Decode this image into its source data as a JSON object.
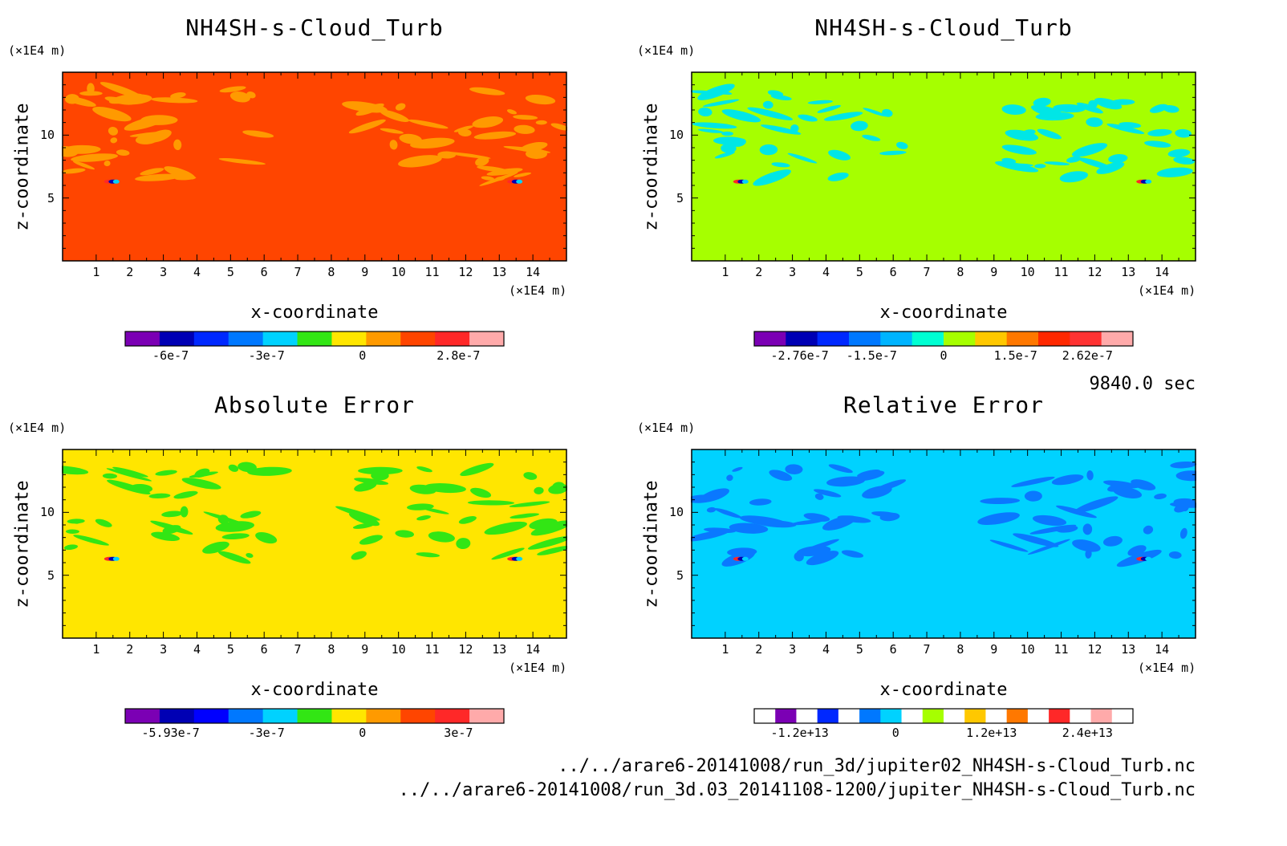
{
  "chart_data": [
    {
      "type": "heatmap",
      "title": "NH4SH-s-Cloud_Turb",
      "xlabel": "x-coordinate",
      "ylabel": "z-coordinate",
      "x_unit": "(×1E4 m)",
      "y_unit": "(×1E4 m)",
      "x_ticks": [
        "1",
        "2",
        "3",
        "4",
        "5",
        "6",
        "7",
        "8",
        "9",
        "10",
        "11",
        "12",
        "13",
        "14"
      ],
      "y_ticks": [
        "5",
        "10"
      ],
      "xlim": [
        0,
        15
      ],
      "ylim": [
        0,
        15
      ],
      "background_level": "#ff4500",
      "pattern_color": "#ff9a00",
      "colorbar": {
        "colors": [
          "#7b00b4",
          "#0000b4",
          "#0028ff",
          "#0078ff",
          "#00d2ff",
          "#32e614",
          "#ffe600",
          "#ff9a00",
          "#ff4500",
          "#ff2828",
          "#ffaaaa"
        ],
        "ticks": [
          "-6e-7",
          "-3e-7",
          "0",
          "2.8e-7"
        ]
      }
    },
    {
      "type": "heatmap",
      "title": "NH4SH-s-Cloud_Turb",
      "xlabel": "x-coordinate",
      "ylabel": "z-coordinate",
      "x_unit": "(×1E4 m)",
      "y_unit": "(×1E4 m)",
      "x_ticks": [
        "1",
        "2",
        "3",
        "4",
        "5",
        "6",
        "7",
        "8",
        "9",
        "10",
        "11",
        "12",
        "13",
        "14"
      ],
      "y_ticks": [
        "5",
        "10"
      ],
      "xlim": [
        0,
        15
      ],
      "ylim": [
        0,
        15
      ],
      "background_level": "#a6ff00",
      "pattern_color": "#00e6e6",
      "colorbar": {
        "colors": [
          "#7b00b4",
          "#0000b4",
          "#0028ff",
          "#0078ff",
          "#00b4ff",
          "#00ffd2",
          "#a6ff00",
          "#ffc800",
          "#ff7800",
          "#ff2800",
          "#ff3232",
          "#ffaaaa"
        ],
        "ticks": [
          "-2.76e-7",
          "-1.5e-7",
          "0",
          "1.5e-7",
          "2.62e-7"
        ]
      }
    },
    {
      "type": "heatmap",
      "title": "Absolute Error",
      "xlabel": "x-coordinate",
      "ylabel": "z-coordinate",
      "x_unit": "(×1E4 m)",
      "y_unit": "(×1E4 m)",
      "x_ticks": [
        "1",
        "2",
        "3",
        "4",
        "5",
        "6",
        "7",
        "8",
        "9",
        "10",
        "11",
        "12",
        "13",
        "14"
      ],
      "y_ticks": [
        "5",
        "10"
      ],
      "xlim": [
        0,
        15
      ],
      "ylim": [
        0,
        15
      ],
      "background_level": "#ffe600",
      "pattern_color": "#32e614",
      "colorbar": {
        "colors": [
          "#7b00b4",
          "#0000b4",
          "#0000ff",
          "#0078ff",
          "#00d2ff",
          "#32e614",
          "#ffe600",
          "#ff9a00",
          "#ff4500",
          "#ff2828",
          "#ffaaaa"
        ],
        "ticks": [
          "-5.93e-7",
          "-3e-7",
          "0",
          "3e-7"
        ]
      }
    },
    {
      "type": "heatmap",
      "title": "Relative Error",
      "xlabel": "x-coordinate",
      "ylabel": "z-coordinate",
      "x_unit": "(×1E4 m)",
      "y_unit": "(×1E4 m)",
      "x_ticks": [
        "1",
        "2",
        "3",
        "4",
        "5",
        "6",
        "7",
        "8",
        "9",
        "10",
        "11",
        "12",
        "13",
        "14"
      ],
      "y_ticks": [
        "5",
        "10"
      ],
      "xlim": [
        0,
        15
      ],
      "ylim": [
        0,
        15
      ],
      "background_level": "#00d2ff",
      "pattern_color": "#0a78ff",
      "colorbar": {
        "colors": [
          "#ffffff",
          "#7b00b4",
          "#ffffff",
          "#0028ff",
          "#ffffff",
          "#0078ff",
          "#00d2ff",
          "#ffffff",
          "#a6ff00",
          "#ffffff",
          "#ffc800",
          "#ffffff",
          "#ff7800",
          "#ffffff",
          "#ff2828",
          "#ffffff",
          "#ffaaaa",
          "#ffffff"
        ],
        "ticks": [
          "-1.2e+13",
          "0",
          "1.2e+13",
          "2.4e+13"
        ]
      }
    }
  ],
  "time_label": "9840.0 sec",
  "footer": [
    "../../arare6-20141008/run_3d/jupiter02_NH4SH-s-Cloud_Turb.nc",
    "../../arare6-20141008/run_3d.03_20141108-1200/jupiter_NH4SH-s-Cloud_Turb.nc"
  ]
}
